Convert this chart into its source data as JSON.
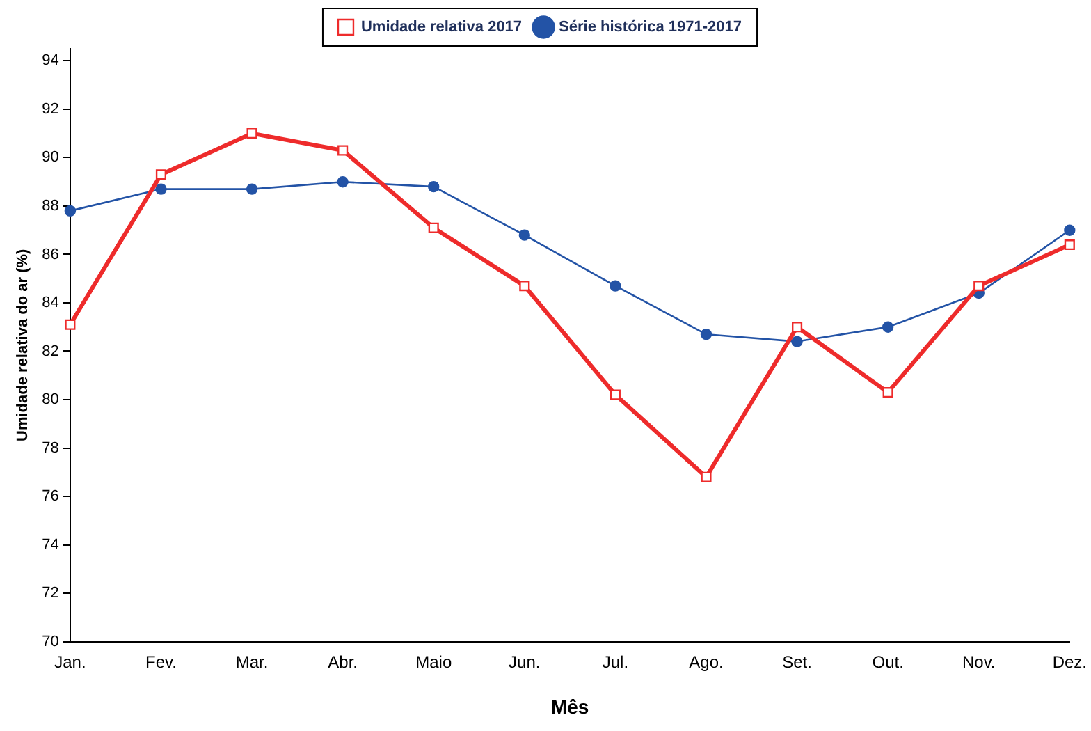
{
  "chart_data": {
    "type": "line",
    "xlabel": "Mês",
    "ylabel": "Umidade relativa do ar (%)",
    "categories": [
      "Jan.",
      "Fev.",
      "Mar.",
      "Abr.",
      "Maio",
      "Jun.",
      "Jul.",
      "Ago.",
      "Set.",
      "Out.",
      "Nov.",
      "Dez."
    ],
    "series": [
      {
        "name": "Umidade relativa 2017",
        "color": "#ee2b2b",
        "marker": "square",
        "values": [
          83.1,
          89.3,
          91.0,
          90.3,
          87.1,
          84.7,
          80.2,
          76.8,
          83.0,
          80.3,
          84.7,
          86.4
        ]
      },
      {
        "name": "Série histórica 1971-2017",
        "color": "#2353a6",
        "marker": "circle",
        "values": [
          87.8,
          88.7,
          88.7,
          89.0,
          88.8,
          86.8,
          84.7,
          82.7,
          82.4,
          83.0,
          84.4,
          87.0
        ]
      }
    ],
    "ylim": [
      70,
      94.5
    ],
    "yticks": [
      70,
      72,
      74,
      76,
      78,
      80,
      82,
      84,
      86,
      88,
      90,
      92,
      94
    ],
    "grid": false,
    "legend": "top",
    "line_style": "solid"
  }
}
